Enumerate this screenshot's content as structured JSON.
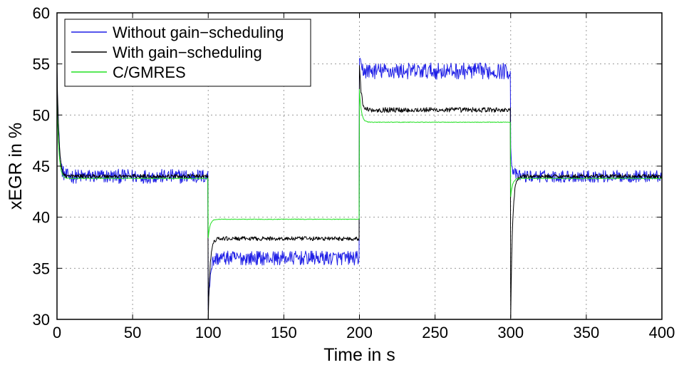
{
  "chart_data": {
    "type": "line",
    "title": "",
    "xlabel": "Time in s",
    "ylabel": "xEGR in %",
    "xlim": [
      0,
      400
    ],
    "ylim": [
      30,
      60
    ],
    "xticks": [
      0,
      50,
      100,
      150,
      200,
      250,
      300,
      350,
      400
    ],
    "yticks": [
      30,
      35,
      40,
      45,
      50,
      55,
      60
    ],
    "grid": true,
    "legend_position": "top-left",
    "series": [
      {
        "name": "Without gain−scheduling",
        "color": "#1f1fe6",
        "segments": [
          {
            "t0": 0,
            "t1": 100,
            "level": 44.0,
            "start": 55.0,
            "noise": 0.7
          },
          {
            "t0": 100,
            "t1": 200,
            "level": 36.0,
            "start": 31.0,
            "noise": 0.7
          },
          {
            "t0": 200,
            "t1": 300,
            "level": 54.3,
            "start": 55.0,
            "noise": 0.8
          },
          {
            "t0": 300,
            "t1": 400,
            "level": 44.0,
            "start": 46.5,
            "noise": 0.6
          }
        ]
      },
      {
        "name": "With gain−scheduling",
        "color": "#000000",
        "segments": [
          {
            "t0": 0,
            "t1": 100,
            "level": 44.0,
            "start": 55.0,
            "noise": 0.2
          },
          {
            "t0": 100,
            "t1": 200,
            "level": 37.9,
            "start": 30.0,
            "noise": 0.2
          },
          {
            "t0": 200,
            "t1": 300,
            "level": 50.5,
            "start": 55.0,
            "noise": 0.25
          },
          {
            "t0": 300,
            "t1": 400,
            "level": 44.0,
            "start": 30.0,
            "noise": 0.2
          }
        ]
      },
      {
        "name": "C/GMRES",
        "color": "#22e022",
        "segments": [
          {
            "t0": 0,
            "t1": 100,
            "level": 43.8,
            "start": 51.5,
            "noise": 0.03
          },
          {
            "t0": 100,
            "t1": 200,
            "level": 39.8,
            "start": 38.0,
            "noise": 0.03
          },
          {
            "t0": 200,
            "t1": 300,
            "level": 49.3,
            "start": 52.5,
            "noise": 0.03
          },
          {
            "t0": 300,
            "t1": 400,
            "level": 43.8,
            "start": 42.0,
            "noise": 0.03
          }
        ]
      }
    ]
  }
}
